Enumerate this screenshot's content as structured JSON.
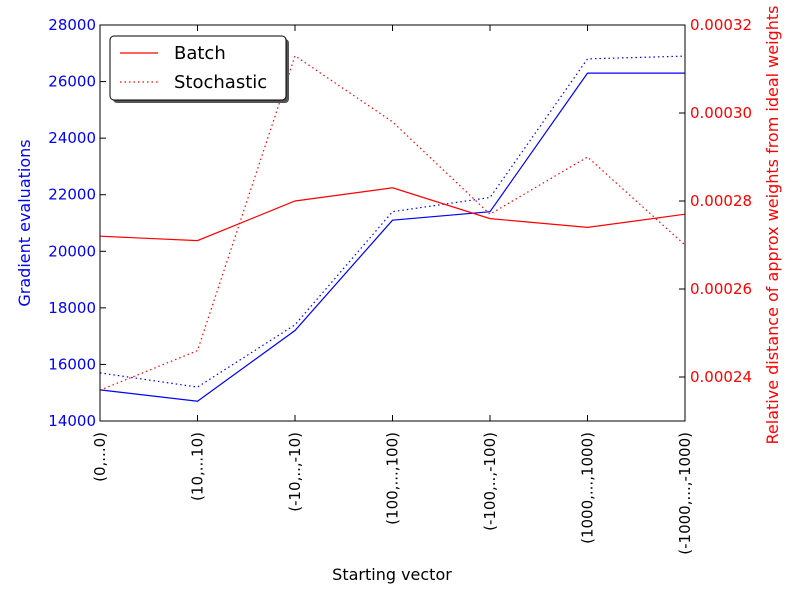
{
  "chart_data": {
    "type": "line",
    "categories": [
      "(0,...0)",
      "(10,...10)",
      "(-10,..,-10)",
      "(100,...,100)",
      "(-100,..,-100)",
      "(1000,...,1000)",
      "(-1000,...,-1000)"
    ],
    "xlabel": "Starting vector",
    "left_axis": {
      "label": "Gradient evaluations",
      "color": "#0000ff",
      "ylim": [
        14000,
        28000
      ],
      "ticks": [
        14000,
        16000,
        18000,
        20000,
        22000,
        24000,
        26000,
        28000
      ]
    },
    "right_axis": {
      "label": "Relative distance of approx weights from ideal weights",
      "color": "#ff0000",
      "ylim": [
        0.00023,
        0.00032
      ],
      "ticks": [
        0.00024,
        0.00026,
        0.00028,
        0.0003,
        0.00032
      ]
    },
    "series": [
      {
        "name": "Batch",
        "axis": "left",
        "color": "#0000ff",
        "style": "solid",
        "in_legend": false,
        "values": [
          15100,
          14700,
          17200,
          21100,
          21400,
          26300,
          26300
        ]
      },
      {
        "name": "Stochastic",
        "axis": "left",
        "color": "#0000ff",
        "style": "dotted",
        "in_legend": false,
        "values": [
          15700,
          15200,
          17400,
          21400,
          21900,
          26800,
          26900
        ]
      },
      {
        "name": "Batch",
        "axis": "right",
        "color": "#ff0000",
        "style": "solid",
        "in_legend": true,
        "values": [
          0.000272,
          0.000271,
          0.00028,
          0.000283,
          0.000276,
          0.000274,
          0.000277
        ]
      },
      {
        "name": "Stochastic",
        "axis": "right",
        "color": "#ff0000",
        "style": "dotted",
        "in_legend": true,
        "values": [
          0.000237,
          0.000246,
          0.000313,
          0.000298,
          0.000277,
          0.00029,
          0.00027
        ]
      }
    ],
    "legend_position": "top-left",
    "grid": false
  }
}
